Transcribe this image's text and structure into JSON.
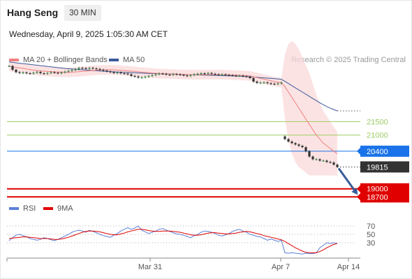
{
  "header": {
    "instrument": "Hang Seng",
    "interval": "30 MIN",
    "datetime": "Wednesday, April 9, 2025 1:05:30 AM CET"
  },
  "legend": {
    "ma20_bb": "MA 20 + Bollinger Bands",
    "ma50": "MA 50",
    "rsi": "RSI",
    "rsi_ma": "9MA"
  },
  "credit": "Research © 2025 Trading Central",
  "colors": {
    "ma20": "#f08080",
    "ma50": "#3a5a99",
    "band": "#fbd9d9",
    "resistance": "#9ccc65",
    "pivot": "#1a73e8",
    "support": "#e00000",
    "last_price_tag": "#333333",
    "rsi": "#5b7fd6",
    "rsi_ma": "#e00000"
  },
  "chart_data": [
    {
      "type": "candlestick",
      "ylim": [
        18500,
        23950
      ],
      "x_labels": [
        "Mar 31",
        "Apr 7",
        "Apr 14"
      ],
      "last_price": 19815,
      "levels": [
        {
          "label": "21500",
          "value": 21500,
          "kind": "resistance"
        },
        {
          "label": "21000",
          "value": 21000,
          "kind": "resistance"
        },
        {
          "label": "20400",
          "value": 20400,
          "kind": "pivot"
        },
        {
          "label": "19000",
          "value": 19000,
          "kind": "support"
        },
        {
          "label": "18700",
          "value": 18700,
          "kind": "support"
        }
      ],
      "close": [
        23570,
        23430,
        23340,
        23310,
        23330,
        23300,
        23290,
        23320,
        23350,
        23300,
        23280,
        23310,
        23340,
        23320,
        23300,
        23330,
        23360,
        23390,
        23420,
        23450,
        23500,
        23490,
        23470,
        23500,
        23480,
        23460,
        23430,
        23400,
        23370,
        23340,
        23310,
        23330,
        23300,
        23290,
        23260,
        23200,
        23180,
        23140,
        23150,
        23170,
        23200,
        23230,
        23260,
        23290,
        23280,
        23250,
        23240,
        23270,
        23260,
        23240,
        23220,
        23200,
        23230,
        23260,
        23280,
        23300,
        23290,
        23310,
        23280,
        23260,
        23250,
        23260,
        23240,
        23230,
        23220,
        23200,
        23210,
        23190,
        23170,
        23120,
        22990,
        22940,
        22950,
        22960,
        22930,
        22910,
        22900,
        22920,
        22950,
        20850,
        20760,
        20700,
        20650,
        20600,
        20550,
        20400,
        20200,
        20100,
        20100,
        20050,
        20050,
        20000,
        19980,
        19900,
        19815
      ],
      "ma20": [
        23560,
        23540,
        23520,
        23500,
        23480,
        23460,
        23440,
        23420,
        23400,
        23390,
        23380,
        23370,
        23360,
        23350,
        23345,
        23340,
        23335,
        23335,
        23340,
        23350,
        23360,
        23370,
        23380,
        23390,
        23400,
        23410,
        23420,
        23425,
        23430,
        23430,
        23425,
        23420,
        23410,
        23400,
        23390,
        23380,
        23370,
        23355,
        23340,
        23330,
        23320,
        23310,
        23300,
        23290,
        23285,
        23280,
        23275,
        23270,
        23265,
        23260,
        23255,
        23250,
        23250,
        23250,
        23250,
        23250,
        23250,
        23250,
        23250,
        23250,
        23250,
        23250,
        23245,
        23240,
        23235,
        23230,
        23225,
        23220,
        23210,
        23200,
        23170,
        23140,
        23110,
        23080,
        23050,
        23020,
        22990,
        22970,
        22950,
        22800,
        22600,
        22400,
        22200,
        22000,
        21800,
        21600,
        21400,
        21200,
        21000,
        20850,
        20700,
        20600,
        20500,
        20400,
        20300
      ],
      "ma50": [
        23720,
        23705,
        23690,
        23675,
        23660,
        23645,
        23630,
        23615,
        23600,
        23585,
        23570,
        23555,
        23540,
        23525,
        23510,
        23495,
        23480,
        23470,
        23460,
        23450,
        23440,
        23430,
        23420,
        23410,
        23400,
        23392,
        23384,
        23376,
        23368,
        23360,
        23354,
        23348,
        23342,
        23336,
        23330,
        23324,
        23318,
        23312,
        23306,
        23300,
        23296,
        23292,
        23288,
        23284,
        23280,
        23276,
        23272,
        23268,
        23264,
        23260,
        23256,
        23252,
        23248,
        23244,
        23240,
        23236,
        23232,
        23228,
        23224,
        23220,
        23216,
        23212,
        23208,
        23204,
        23200,
        23196,
        23190,
        23184,
        23178,
        23170,
        23160,
        23150,
        23140,
        23130,
        23120,
        23110,
        23100,
        23090,
        23070,
        23000,
        22920,
        22840,
        22760,
        22680,
        22600,
        22520,
        22440,
        22360,
        22280,
        22200,
        22130,
        22060,
        22000,
        21950,
        21900
      ],
      "band_half_width": [
        180,
        180,
        180,
        180,
        180,
        180,
        180,
        180,
        180,
        180,
        180,
        180,
        180,
        180,
        180,
        180,
        180,
        180,
        180,
        180,
        180,
        180,
        180,
        180,
        180,
        180,
        180,
        180,
        180,
        180,
        180,
        180,
        180,
        180,
        180,
        180,
        180,
        180,
        180,
        180,
        180,
        180,
        180,
        180,
        180,
        180,
        180,
        180,
        180,
        180,
        180,
        180,
        180,
        180,
        180,
        180,
        180,
        180,
        180,
        180,
        180,
        180,
        180,
        180,
        180,
        180,
        180,
        180,
        180,
        180,
        180,
        180,
        180,
        180,
        180,
        180,
        180,
        180,
        180,
        1200,
        1800,
        2100,
        2200,
        2200,
        2100,
        2000,
        1900,
        1700,
        1500,
        1350,
        1200,
        1100,
        1000,
        900,
        820
      ]
    },
    {
      "type": "line",
      "name": "RSI",
      "ylim": [
        0,
        100
      ],
      "ticks": [
        70,
        50,
        30
      ],
      "rsi": [
        35,
        42,
        48,
        50,
        47,
        44,
        40,
        38,
        36,
        38,
        42,
        40,
        37,
        35,
        38,
        42,
        46,
        50,
        55,
        58,
        60,
        58,
        55,
        60,
        57,
        54,
        50,
        47,
        45,
        43,
        48,
        52,
        58,
        62,
        66,
        62,
        65,
        70,
        60,
        56,
        52,
        55,
        58,
        62,
        64,
        60,
        57,
        54,
        51,
        50,
        48,
        45,
        42,
        47,
        50,
        55,
        58,
        57,
        55,
        52,
        48,
        46,
        49,
        52,
        57,
        60,
        62,
        58,
        55,
        50,
        48,
        45,
        44,
        40,
        36,
        39,
        36,
        33,
        36,
        6,
        5,
        6,
        5,
        4,
        3,
        5,
        4,
        4,
        6,
        18,
        24,
        30,
        28,
        30,
        28
      ],
      "ma9": [
        40,
        41,
        42,
        43,
        44,
        44,
        43,
        42,
        41,
        40,
        40,
        40,
        39,
        38,
        38,
        39,
        41,
        43,
        46,
        49,
        52,
        55,
        57,
        58,
        58,
        57,
        56,
        54,
        52,
        50,
        49,
        49,
        51,
        53,
        56,
        58,
        60,
        62,
        62,
        61,
        59,
        58,
        57,
        57,
        58,
        58,
        58,
        57,
        56,
        55,
        53,
        51,
        49,
        48,
        48,
        49,
        51,
        53,
        54,
        54,
        53,
        52,
        51,
        51,
        52,
        53,
        55,
        56,
        57,
        56,
        54,
        52,
        50,
        47,
        45,
        43,
        41,
        39,
        37,
        33,
        28,
        23,
        18,
        14,
        10,
        7,
        6,
        6,
        6,
        9,
        13,
        18,
        22,
        26,
        28
      ]
    }
  ]
}
